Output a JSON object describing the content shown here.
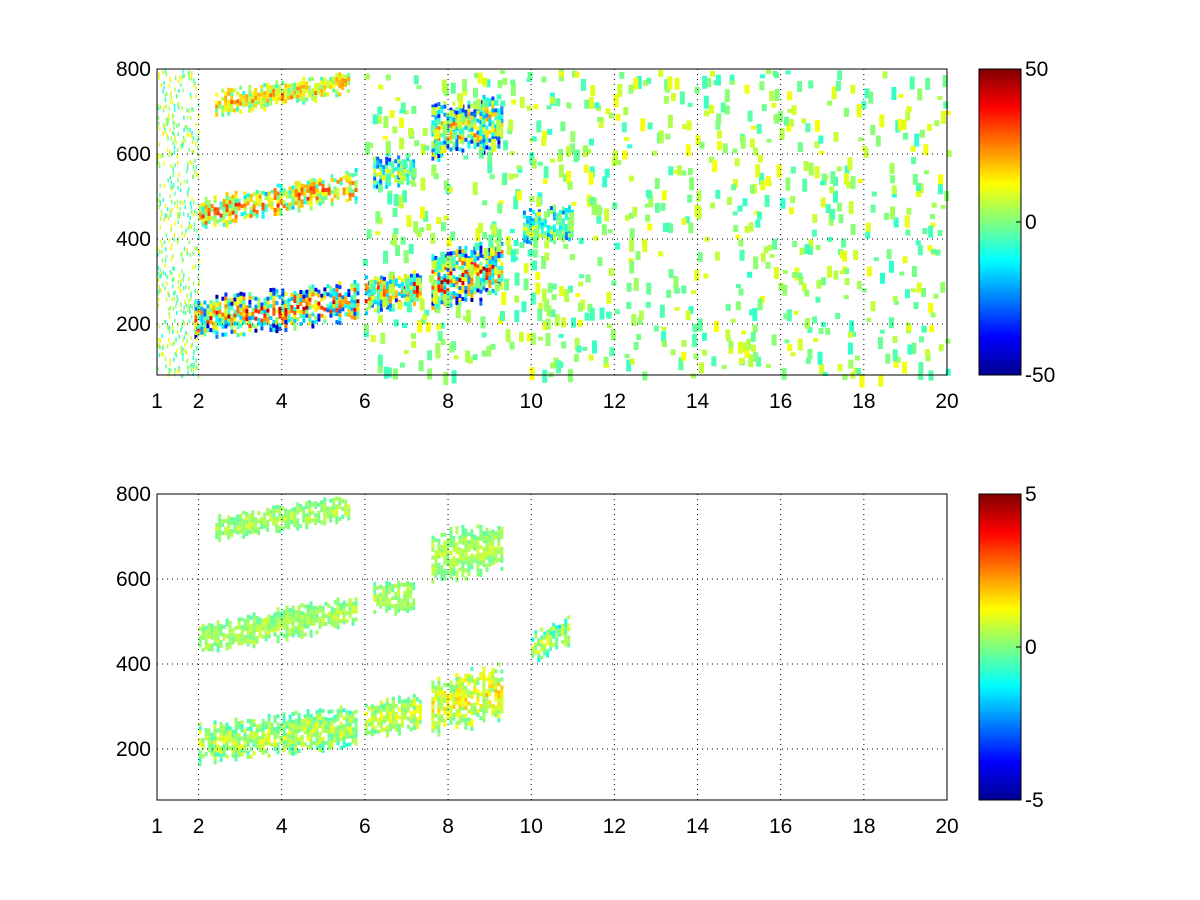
{
  "chart_data": [
    {
      "type": "heatmap",
      "title": "",
      "xlabel": "",
      "ylabel": "",
      "xlim": [
        1,
        20
      ],
      "ylim": [
        80,
        800
      ],
      "x_ticks": [
        "1",
        "2",
        "4",
        "6",
        "8",
        "10",
        "12",
        "14",
        "16",
        "18",
        "20"
      ],
      "y_ticks": [
        "200",
        "400",
        "600",
        "800"
      ],
      "x_tick_values": [
        1,
        2,
        4,
        6,
        8,
        10,
        12,
        14,
        16,
        18,
        20
      ],
      "y_tick_values": [
        200,
        400,
        600,
        800
      ],
      "grid": true,
      "colormap": "jet",
      "colorbar": {
        "min": -50,
        "max": 50,
        "ticks": [
          "50",
          "0",
          "-50"
        ],
        "tick_values": [
          50,
          0,
          -50
        ]
      },
      "bands": [
        {
          "x": [
            1.9,
            5.8
          ],
          "y_start": [
            215,
            255
          ],
          "y_end": [
            215,
            255
          ],
          "width": 80,
          "min": -50,
          "max": 50
        },
        {
          "x": [
            2.0,
            5.8
          ],
          "y_start": [
            460,
            530
          ],
          "y_end": [
            460,
            530
          ],
          "width": 60,
          "min": -20,
          "max": 40
        },
        {
          "x": [
            2.4,
            5.6
          ],
          "y_start": [
            720,
            770
          ],
          "y_end": [
            720,
            770
          ],
          "width": 50,
          "min": -10,
          "max": 30
        },
        {
          "x": [
            6.0,
            7.3
          ],
          "y_start": [
            270,
            290
          ],
          "y_end": [
            270,
            290
          ],
          "width": 70,
          "min": -40,
          "max": 45
        },
        {
          "x": [
            6.2,
            7.2
          ],
          "y_start": [
            560,
            560
          ],
          "y_end": [
            560,
            560
          ],
          "width": 60,
          "min": -40,
          "max": 20
        },
        {
          "x": [
            7.6,
            9.3
          ],
          "y_start": [
            300,
            340
          ],
          "y_end": [
            300,
            340
          ],
          "width": 120,
          "min": -50,
          "max": 50
        },
        {
          "x": [
            7.6,
            9.3
          ],
          "y_start": [
            650,
            680
          ],
          "y_end": [
            650,
            680
          ],
          "width": 110,
          "min": -45,
          "max": 35
        },
        {
          "x": [
            9.8,
            11.0
          ],
          "y_start": [
            430,
            440
          ],
          "y_end": [
            430,
            440
          ],
          "width": 70,
          "min": -30,
          "max": 20
        }
      ],
      "sparse_region": {
        "x": [
          5.9,
          20
        ],
        "y": [
          80,
          800
        ],
        "min": -8,
        "max": 12
      }
    },
    {
      "type": "heatmap",
      "title": "",
      "xlabel": "",
      "ylabel": "",
      "xlim": [
        1,
        20
      ],
      "ylim": [
        80,
        800
      ],
      "x_ticks": [
        "1",
        "2",
        "4",
        "6",
        "8",
        "10",
        "12",
        "14",
        "16",
        "18",
        "20"
      ],
      "y_ticks": [
        "200",
        "400",
        "600",
        "800"
      ],
      "x_tick_values": [
        1,
        2,
        4,
        6,
        8,
        10,
        12,
        14,
        16,
        18,
        20
      ],
      "y_tick_values": [
        200,
        400,
        600,
        800
      ],
      "grid": true,
      "colormap": "jet",
      "colorbar": {
        "min": -5,
        "max": 5,
        "ticks": [
          "5",
          "0",
          "-5"
        ],
        "tick_values": [
          5,
          0,
          -5
        ]
      },
      "bands": [
        {
          "x": [
            2.0,
            5.8
          ],
          "y_start": [
            215,
            255
          ],
          "y_end": [
            215,
            255
          ],
          "width": 80,
          "min": -1,
          "max": 1.5
        },
        {
          "x": [
            2.0,
            5.8
          ],
          "y_start": [
            460,
            530
          ],
          "y_end": [
            460,
            530
          ],
          "width": 60,
          "min": -0.5,
          "max": 1
        },
        {
          "x": [
            2.4,
            5.6
          ],
          "y_start": [
            720,
            770
          ],
          "y_end": [
            720,
            770
          ],
          "width": 50,
          "min": -0.5,
          "max": 1
        },
        {
          "x": [
            6.0,
            7.3
          ],
          "y_start": [
            270,
            290
          ],
          "y_end": [
            270,
            290
          ],
          "width": 70,
          "min": -0.5,
          "max": 1.5
        },
        {
          "x": [
            6.2,
            7.2
          ],
          "y_start": [
            560,
            560
          ],
          "y_end": [
            560,
            560
          ],
          "width": 60,
          "min": -0.5,
          "max": 1
        },
        {
          "x": [
            7.6,
            9.3
          ],
          "y_start": [
            300,
            340
          ],
          "y_end": [
            300,
            340
          ],
          "width": 110,
          "min": -0.5,
          "max": 2
        },
        {
          "x": [
            7.6,
            9.3
          ],
          "y_start": [
            650,
            680
          ],
          "y_end": [
            650,
            680
          ],
          "width": 100,
          "min": -0.5,
          "max": 1
        },
        {
          "x": [
            10.0,
            10.9
          ],
          "y_start": [
            440,
            480
          ],
          "y_end": [
            440,
            480
          ],
          "width": 60,
          "min": -1.5,
          "max": 1.5
        }
      ]
    }
  ]
}
